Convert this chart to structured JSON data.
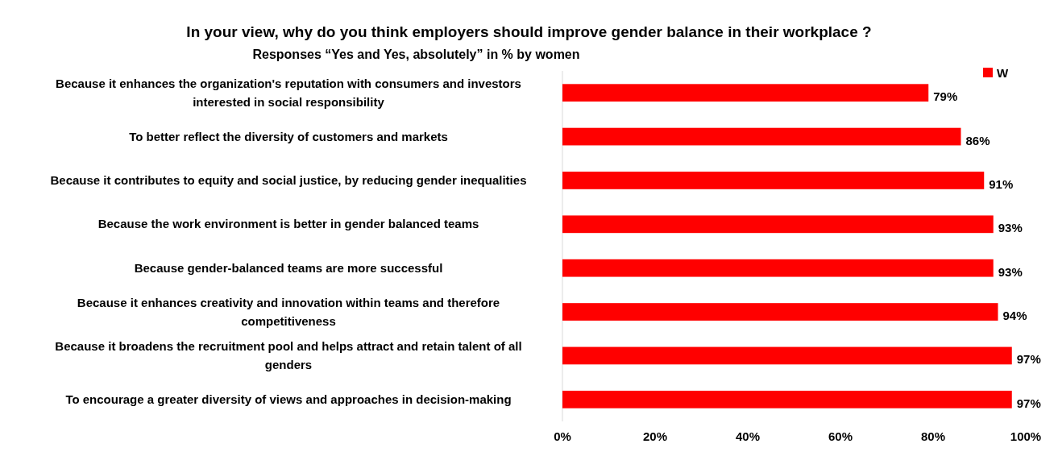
{
  "chart_data": {
    "type": "bar",
    "orientation": "horizontal",
    "title": "In your view, why do you think employers should improve gender balance in their workplace ?",
    "subtitle": "Responses “Yes and Yes, absolutely” in % by women",
    "categories": [
      "Because it enhances the organization's reputation with consumers and investors interested in social responsibility",
      "To better reflect the diversity of customers and markets",
      "Because it contributes to equity and social justice, by reducing gender inequalities",
      "Because the work environment is better in gender balanced teams",
      "Because gender-balanced teams are more successful",
      "Because it enhances creativity and innovation within teams and therefore competitiveness",
      "Because it broadens the recruitment pool and helps attract and retain talent of all genders",
      "To encourage a greater diversity of views and approaches in decision-making"
    ],
    "series": [
      {
        "name": "W",
        "color": "#ff0000",
        "values": [
          79,
          86,
          91,
          93,
          93,
          94,
          97,
          97
        ],
        "value_labels": [
          "79%",
          "86%",
          "91%",
          "93%",
          "93%",
          "94%",
          "97%",
          "97%"
        ]
      }
    ],
    "xlim": [
      0,
      100
    ],
    "xticks": [
      {
        "value": 0,
        "label": "0%"
      },
      {
        "value": 20,
        "label": "20%"
      },
      {
        "value": 40,
        "label": "40%"
      },
      {
        "value": 60,
        "label": "60%"
      },
      {
        "value": 80,
        "label": "80%"
      },
      {
        "value": 100,
        "label": "100%"
      }
    ],
    "grid": false,
    "legend": "top right"
  }
}
